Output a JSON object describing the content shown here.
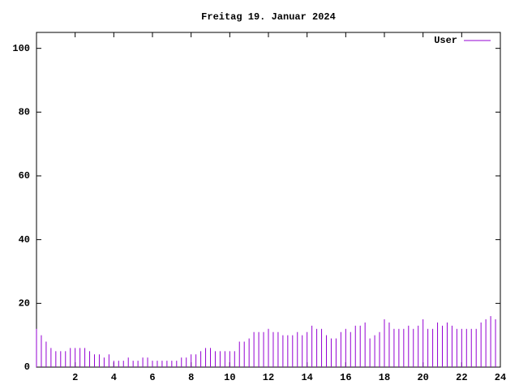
{
  "chart_data": {
    "type": "impulses",
    "title": "Freitag 19. Januar 2024",
    "x": [
      0,
      0.25,
      0.5,
      0.75,
      1,
      1.25,
      1.5,
      1.75,
      2,
      2.25,
      2.5,
      2.75,
      3,
      3.25,
      3.5,
      3.75,
      4,
      4.25,
      4.5,
      4.75,
      5,
      5.25,
      5.5,
      5.75,
      6,
      6.25,
      6.5,
      6.75,
      7,
      7.25,
      7.5,
      7.75,
      8,
      8.25,
      8.5,
      8.75,
      9,
      9.25,
      9.5,
      9.75,
      10,
      10.25,
      10.5,
      10.75,
      11,
      11.25,
      11.5,
      11.75,
      12,
      12.25,
      12.5,
      12.75,
      13,
      13.25,
      13.5,
      13.75,
      14,
      14.25,
      14.5,
      14.75,
      15,
      15.25,
      15.5,
      15.75,
      16,
      16.25,
      16.5,
      16.75,
      17,
      17.25,
      17.5,
      17.75,
      18,
      18.25,
      18.5,
      18.75,
      19,
      19.25,
      19.5,
      19.75,
      20,
      20.25,
      20.5,
      20.75,
      21,
      21.25,
      21.5,
      21.75,
      22,
      22.25,
      22.5,
      22.75,
      23,
      23.25,
      23.5,
      23.75
    ],
    "series": [
      {
        "name": "User",
        "color": "#9400d3",
        "values": [
          12,
          10,
          8,
          6,
          5,
          5,
          5,
          6,
          6,
          6,
          6,
          5,
          4,
          4,
          3,
          4,
          2,
          2,
          2,
          3,
          2,
          2,
          3,
          3,
          2,
          2,
          2,
          2,
          2,
          2,
          3,
          3,
          4,
          4,
          5,
          6,
          6,
          5,
          5,
          5,
          5,
          5,
          8,
          8,
          9,
          11,
          11,
          11,
          12,
          11,
          11,
          10,
          10,
          10,
          11,
          10,
          11,
          13,
          12,
          12,
          10,
          9,
          9,
          11,
          12,
          11,
          13,
          13,
          14,
          9,
          10,
          11,
          15,
          14,
          12,
          12,
          12,
          13,
          12,
          13,
          15,
          12,
          12,
          14,
          13,
          14,
          13,
          12,
          12,
          12,
          12,
          12,
          14,
          15,
          16,
          15
        ]
      }
    ],
    "xlim": [
      0,
      24
    ],
    "xticks": [
      2,
      4,
      6,
      8,
      10,
      12,
      14,
      16,
      18,
      20,
      22,
      24
    ],
    "ylim": [
      0,
      105
    ],
    "yticks": [
      0,
      20,
      40,
      60,
      80,
      100
    ]
  }
}
